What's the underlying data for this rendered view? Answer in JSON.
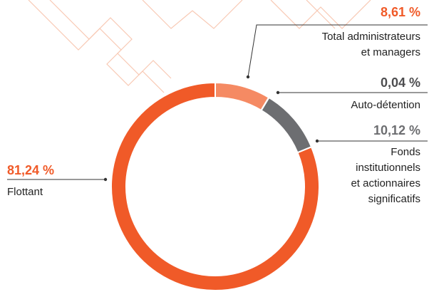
{
  "chart_data": {
    "type": "donut",
    "categories": [
      [
        "Total administrateurs",
        "et managers"
      ],
      [
        "Auto-détention"
      ],
      [
        "Fonds",
        "institutionnels",
        "et actionnaires",
        "significatifs"
      ],
      [
        "Flottant"
      ]
    ],
    "values": [
      8.61,
      0.04,
      10.12,
      81.24
    ],
    "value_labels": [
      "8,61 %",
      "0,04 %",
      "10,12 %",
      "81,24 %"
    ],
    "colors": [
      "#f58a63",
      "#4d4d4f",
      "#6d6e71",
      "#f05a28"
    ],
    "label_colors": [
      "#f05a28",
      "#4d4d4f",
      "#6d6e71",
      "#f05a28"
    ]
  }
}
